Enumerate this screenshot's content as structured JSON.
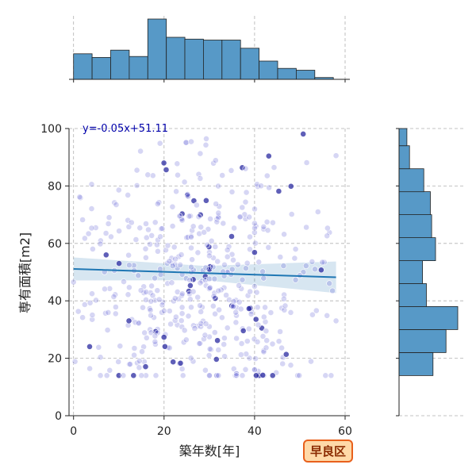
{
  "chart_data": {
    "type": "scatter",
    "title": "",
    "xlabel": "築年数[年]",
    "ylabel": "専有面積[m2]",
    "xlim": [
      0,
      60
    ],
    "ylim": [
      0,
      100
    ],
    "xticks": [
      0,
      20,
      40,
      60
    ],
    "yticks": [
      0,
      20,
      40,
      60,
      80,
      100
    ],
    "grid": true,
    "annotation": "y=-0.05x+51.11",
    "badge": "早良区",
    "regression": {
      "slope": -0.05,
      "intercept": 51.11,
      "x_range": [
        0,
        58
      ],
      "ci_halfwidth": [
        4,
        2.5,
        5.5
      ]
    },
    "marginal_x_hist": {
      "bin_edges": [
        0,
        4.1,
        8.2,
        12.3,
        16.4,
        20.5,
        24.6,
        28.7,
        32.8,
        36.9,
        41.0,
        45.1,
        49.2,
        53.3,
        57.4
      ],
      "counts": [
        28,
        24,
        32,
        25,
        66,
        46,
        44,
        43,
        43,
        34,
        20,
        12,
        10,
        2
      ]
    },
    "marginal_y_hist": {
      "bin_edges": [
        14,
        22,
        30,
        38,
        46,
        54,
        62,
        70,
        78,
        86,
        94,
        102
      ],
      "counts": [
        26,
        36,
        45,
        21,
        18,
        28,
        25,
        24,
        19,
        8,
        6
      ]
    },
    "scatter": {
      "point_count": 500,
      "x_distribution": "most points between 0 and 58 years, dense around 18-40",
      "y_distribution": "most points between 15 and 100 m2, dense around 20-75"
    },
    "colors": {
      "points": "#6a6ad6",
      "points_dark": "#2a2aa0",
      "regression_line": "#1f77b4",
      "ci_band": "#1f77b4",
      "hist_fill": "#5799c7",
      "badge_fill": "#ffd9a8",
      "badge_border": "#e8601c",
      "grid": "#b0b0b0"
    }
  }
}
